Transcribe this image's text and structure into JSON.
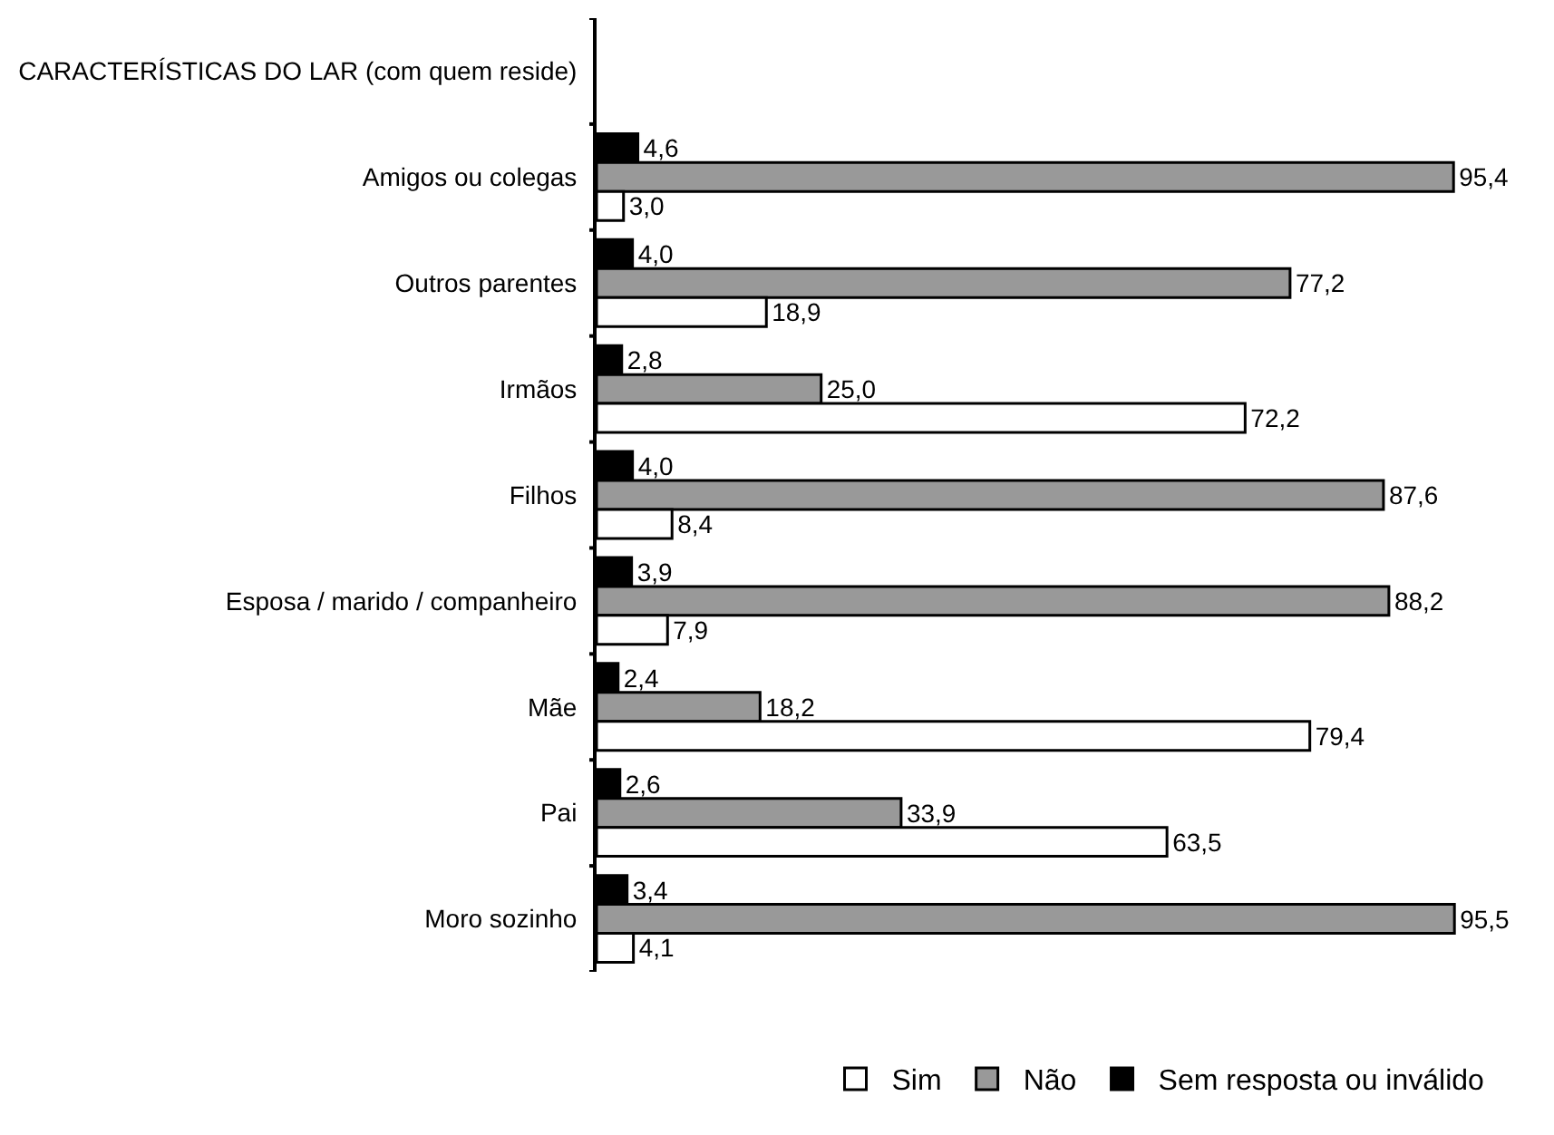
{
  "chart_data": {
    "type": "bar",
    "orientation": "horizontal",
    "categories": [
      "CARACTERÍSTICAS DO LAR (com quem reside)",
      "Amigos ou colegas",
      "Outros parentes",
      "Irmãos",
      "Filhos",
      "Esposa / marido / companheiro",
      "Mãe",
      "Pai",
      "Moro sozinho"
    ],
    "series": [
      {
        "name": "Sim",
        "color": "#ffffff",
        "values": [
          null,
          3.0,
          18.9,
          72.2,
          8.4,
          7.9,
          79.4,
          63.5,
          4.1
        ],
        "value_labels": [
          null,
          "3,0",
          "18,9",
          "72,2",
          "8,4",
          "7,9",
          "79,4",
          "63,5",
          "4,1"
        ]
      },
      {
        "name": "Não",
        "color": "#999999",
        "values": [
          null,
          95.4,
          77.2,
          25.0,
          87.6,
          88.2,
          18.2,
          33.9,
          95.5
        ],
        "value_labels": [
          null,
          "95,4",
          "77,2",
          "25,0",
          "87,6",
          "88,2",
          "18,2",
          "33,9",
          "95,5"
        ]
      },
      {
        "name": "Sem resposta ou inválido",
        "color": "#000000",
        "values": [
          null,
          4.6,
          4.0,
          2.8,
          4.0,
          3.9,
          2.4,
          2.6,
          3.4
        ],
        "value_labels": [
          null,
          "4,6",
          "4,0",
          "2,8",
          "4,0",
          "3,9",
          "2,4",
          "2,6",
          "3,4"
        ]
      }
    ],
    "legend": "bottom"
  }
}
